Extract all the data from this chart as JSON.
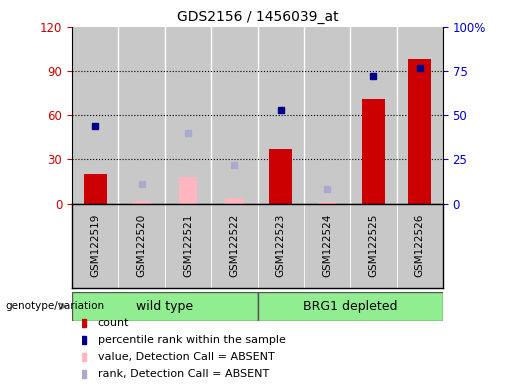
{
  "title": "GDS2156 / 1456039_at",
  "samples": [
    "GSM122519",
    "GSM122520",
    "GSM122521",
    "GSM122522",
    "GSM122523",
    "GSM122524",
    "GSM122525",
    "GSM122526"
  ],
  "count_bars": [
    20,
    null,
    null,
    null,
    37,
    null,
    71,
    98
  ],
  "rank_dots": [
    44,
    null,
    null,
    null,
    53,
    null,
    72,
    77
  ],
  "absent_value_bars": [
    null,
    2,
    18,
    4,
    null,
    1,
    null,
    null
  ],
  "absent_rank_dots": [
    null,
    11,
    40,
    22,
    null,
    8,
    null,
    null
  ],
  "left_ylim": [
    0,
    120
  ],
  "right_ylim": [
    0,
    100
  ],
  "left_yticks": [
    0,
    30,
    60,
    90,
    120
  ],
  "right_yticks": [
    0,
    25,
    50,
    75,
    100
  ],
  "right_yticklabels": [
    "0",
    "25",
    "50",
    "75",
    "100%"
  ],
  "left_tick_color": "#CC0000",
  "right_tick_color": "#0000CC",
  "col_bg_color": "#C8C8C8",
  "plot_bg_color": "#FFFFFF",
  "bar_color_count": "#CC0000",
  "bar_color_absent_value": "#FFB6C1",
  "dot_color_rank": "#00008B",
  "dot_color_absent_rank": "#AAAACC",
  "group1_label": "wild type",
  "group2_label": "BRG1 depleted",
  "group_color": "#90EE90",
  "group_border_color": "#333333",
  "genotype_label": "genotype/variation",
  "legend_items": [
    {
      "color": "#CC0000",
      "label": "count"
    },
    {
      "color": "#00008B",
      "label": "percentile rank within the sample"
    },
    {
      "color": "#FFB6C1",
      "label": "value, Detection Call = ABSENT"
    },
    {
      "color": "#AAAACC",
      "label": "rank, Detection Call = ABSENT"
    }
  ]
}
